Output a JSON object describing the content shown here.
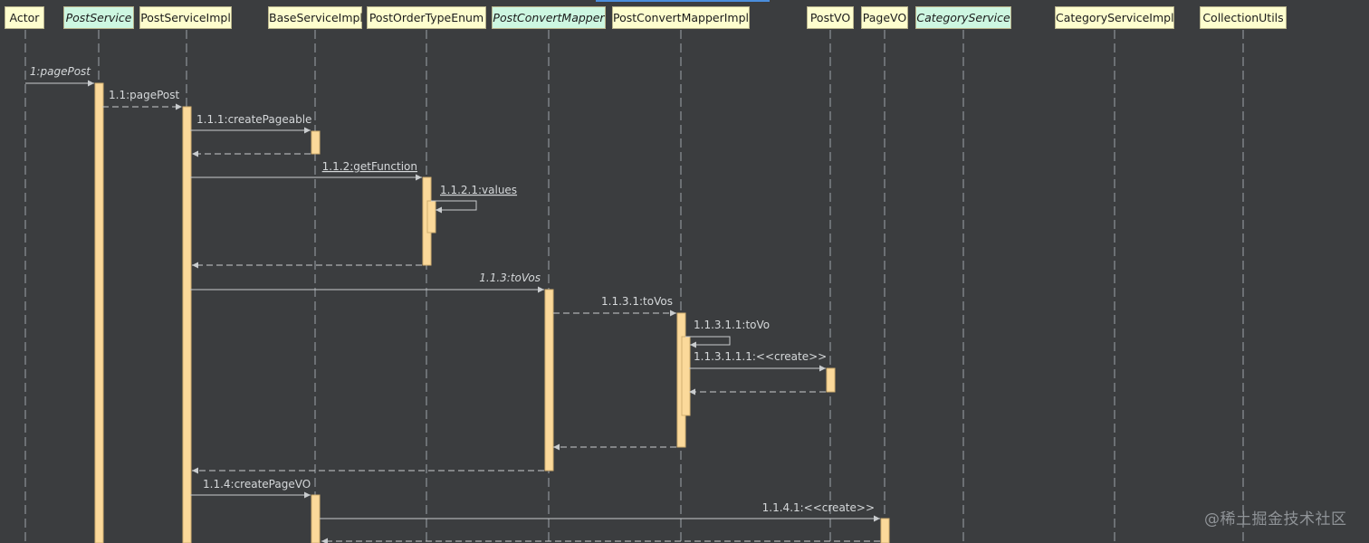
{
  "colors": {
    "background": "#3b3d3f",
    "lifeline": "#9da3a8",
    "arrow": "#c9ccce",
    "label": "#d5d8da",
    "activation": "#fbd99a",
    "activation_border": "#d0ae70",
    "class_header": "#fefece",
    "interface_header": "#cdf7e1"
  },
  "participants": [
    {
      "name": "Actor",
      "kind": "class"
    },
    {
      "name": "PostService",
      "kind": "interface"
    },
    {
      "name": "PostServiceImpl",
      "kind": "class"
    },
    {
      "name": "BaseServiceImpl",
      "kind": "class"
    },
    {
      "name": "PostOrderTypeEnum",
      "kind": "class"
    },
    {
      "name": "PostConvertMapper",
      "kind": "interface"
    },
    {
      "name": "PostConvertMapperImpl",
      "kind": "class"
    },
    {
      "name": "PostVO",
      "kind": "class"
    },
    {
      "name": "PageVO",
      "kind": "class"
    },
    {
      "name": "CategoryService",
      "kind": "interface"
    },
    {
      "name": "CategoryServiceImpl",
      "kind": "class"
    },
    {
      "name": "CollectionUtils",
      "kind": "class"
    }
  ],
  "messages": [
    {
      "label": "1:pagePost",
      "italic": true
    },
    {
      "label": "1.1:pagePost"
    },
    {
      "label": "1.1.1:createPageable"
    },
    {
      "label": "1.1.2:getFunction",
      "underline": true
    },
    {
      "label": "1.1.2.1:values",
      "underline": true
    },
    {
      "label": "1.1.3:toVos",
      "italic": true
    },
    {
      "label": "1.1.3.1:toVos"
    },
    {
      "label": "1.1.3.1.1:toVo"
    },
    {
      "label": "1.1.3.1.1.1:<<create>>"
    },
    {
      "label": "1.1.4:createPageVO"
    },
    {
      "label": "1.1.4.1:<<create>>"
    }
  ],
  "watermark": "@稀土掘金技术社区"
}
